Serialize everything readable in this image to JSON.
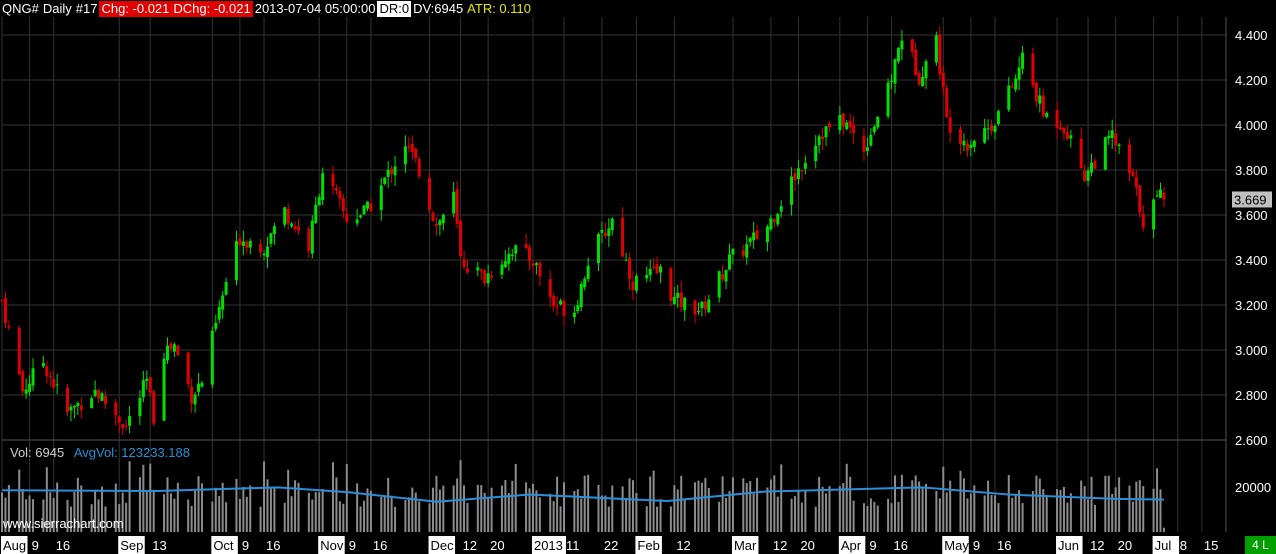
{
  "header": {
    "symbol": "QNG#",
    "period": "Daily",
    "number": "#17",
    "chg": "Chg: -0.021",
    "dchg": "DChg: -0.021",
    "datetime": "2013-07-04 05:00:00",
    "dr": "DR:0",
    "dv": "DV:6945",
    "atr": "ATR: 0.110"
  },
  "volume_header": {
    "vol": "Vol: 6945",
    "avgvol": "AvgVol: 123233.188"
  },
  "watermark": "www.sierrachart.com",
  "corner_label": "4 L",
  "colors": {
    "background": "#000000",
    "grid": "#333333",
    "up": "#00e000",
    "down": "#e00000",
    "volume": "#8c8c8c",
    "avg_line": "#2a8fd6",
    "price_label_bg": "#c0c0c0"
  },
  "chart_data": [
    {
      "type": "candlestick",
      "title": "QNG# Daily",
      "ylabel": "",
      "ylim": [
        2.6,
        4.48
      ],
      "y_ticks": [
        "4.400",
        "4.200",
        "4.000",
        "3.800",
        "3.600",
        "3.400",
        "3.200",
        "3.000",
        "2.800",
        "2.600"
      ],
      "last_price": "3.669",
      "grid": true,
      "x_ticks": [
        "Aug",
        "9",
        "16",
        "Sep",
        "13",
        "Oct",
        "9",
        "16",
        "Nov",
        "9",
        "16",
        "Dec",
        "12",
        "20",
        "2013",
        "11",
        "22",
        "Feb",
        "12",
        "Mar",
        "12",
        "20",
        "Apr",
        "9",
        "16",
        "May",
        "9",
        "16",
        "Jun",
        "12",
        "20",
        "Jul",
        "8",
        "15"
      ],
      "anchors": [
        {
          "x": "2012-08-01",
          "y": 3.22
        },
        {
          "x": "2012-08-07",
          "y": 2.82
        },
        {
          "x": "2012-08-13",
          "y": 2.95
        },
        {
          "x": "2012-08-20",
          "y": 2.72
        },
        {
          "x": "2012-08-28",
          "y": 2.82
        },
        {
          "x": "2012-09-06",
          "y": 2.66
        },
        {
          "x": "2012-09-12",
          "y": 2.86
        },
        {
          "x": "2012-09-14",
          "y": 2.7
        },
        {
          "x": "2012-09-17",
          "y": 3.0
        },
        {
          "x": "2012-09-20",
          "y": 3.02
        },
        {
          "x": "2012-09-25",
          "y": 2.8
        },
        {
          "x": "2012-09-28",
          "y": 2.86
        },
        {
          "x": "2012-10-05",
          "y": 3.3
        },
        {
          "x": "2012-10-09",
          "y": 3.5
        },
        {
          "x": "2012-10-16",
          "y": 3.46
        },
        {
          "x": "2012-10-22",
          "y": 3.62
        },
        {
          "x": "2012-10-29",
          "y": 3.46
        },
        {
          "x": "2012-11-02",
          "y": 3.8
        },
        {
          "x": "2012-11-09",
          "y": 3.58
        },
        {
          "x": "2012-11-15",
          "y": 3.62
        },
        {
          "x": "2012-11-21",
          "y": 3.78
        },
        {
          "x": "2012-11-26",
          "y": 3.92
        },
        {
          "x": "2012-11-30",
          "y": 3.8
        },
        {
          "x": "2012-12-05",
          "y": 3.55
        },
        {
          "x": "2012-12-10",
          "y": 3.68
        },
        {
          "x": "2012-12-12",
          "y": 3.4
        },
        {
          "x": "2012-12-19",
          "y": 3.32
        },
        {
          "x": "2012-12-27",
          "y": 3.45
        },
        {
          "x": "2013-01-02",
          "y": 3.4
        },
        {
          "x": "2013-01-08",
          "y": 3.2
        },
        {
          "x": "2013-01-14",
          "y": 3.18
        },
        {
          "x": "2013-01-18",
          "y": 3.4
        },
        {
          "x": "2013-01-25",
          "y": 3.58
        },
        {
          "x": "2013-01-31",
          "y": 3.3
        },
        {
          "x": "2013-02-08",
          "y": 3.35
        },
        {
          "x": "2013-02-12",
          "y": 3.22
        },
        {
          "x": "2013-02-20",
          "y": 3.18
        },
        {
          "x": "2013-02-28",
          "y": 3.4
        },
        {
          "x": "2013-03-05",
          "y": 3.46
        },
        {
          "x": "2013-03-11",
          "y": 3.55
        },
        {
          "x": "2013-03-18",
          "y": 3.75
        },
        {
          "x": "2013-03-26",
          "y": 3.96
        },
        {
          "x": "2013-04-02",
          "y": 4.02
        },
        {
          "x": "2013-04-08",
          "y": 3.9
        },
        {
          "x": "2013-04-15",
          "y": 4.15
        },
        {
          "x": "2013-04-19",
          "y": 4.4
        },
        {
          "x": "2013-04-24",
          "y": 4.22
        },
        {
          "x": "2013-04-29",
          "y": 4.38
        },
        {
          "x": "2013-05-02",
          "y": 4.02
        },
        {
          "x": "2013-05-08",
          "y": 3.92
        },
        {
          "x": "2013-05-15",
          "y": 4.0
        },
        {
          "x": "2013-05-22",
          "y": 4.2
        },
        {
          "x": "2013-05-24",
          "y": 4.3
        },
        {
          "x": "2013-05-30",
          "y": 4.05
        },
        {
          "x": "2013-06-05",
          "y": 4.0
        },
        {
          "x": "2013-06-11",
          "y": 3.78
        },
        {
          "x": "2013-06-19",
          "y": 3.95
        },
        {
          "x": "2013-06-25",
          "y": 3.75
        },
        {
          "x": "2013-06-28",
          "y": 3.58
        },
        {
          "x": "2013-07-03",
          "y": 3.69
        },
        {
          "x": "2013-07-04",
          "y": 3.669
        }
      ]
    },
    {
      "type": "bar",
      "title": "Volume",
      "y_ticks": [
        "20000"
      ],
      "last_volume": 6945,
      "avg_line": [
        {
          "x": "2012-08-01",
          "y": 0.58
        },
        {
          "x": "2012-09-15",
          "y": 0.57
        },
        {
          "x": "2012-10-20",
          "y": 0.62
        },
        {
          "x": "2012-11-10",
          "y": 0.55
        },
        {
          "x": "2012-12-05",
          "y": 0.42
        },
        {
          "x": "2013-01-01",
          "y": 0.52
        },
        {
          "x": "2013-02-10",
          "y": 0.43
        },
        {
          "x": "2013-03-10",
          "y": 0.56
        },
        {
          "x": "2013-04-25",
          "y": 0.62
        },
        {
          "x": "2013-05-20",
          "y": 0.52
        },
        {
          "x": "2013-06-20",
          "y": 0.46
        },
        {
          "x": "2013-07-04",
          "y": 0.45
        }
      ]
    }
  ]
}
